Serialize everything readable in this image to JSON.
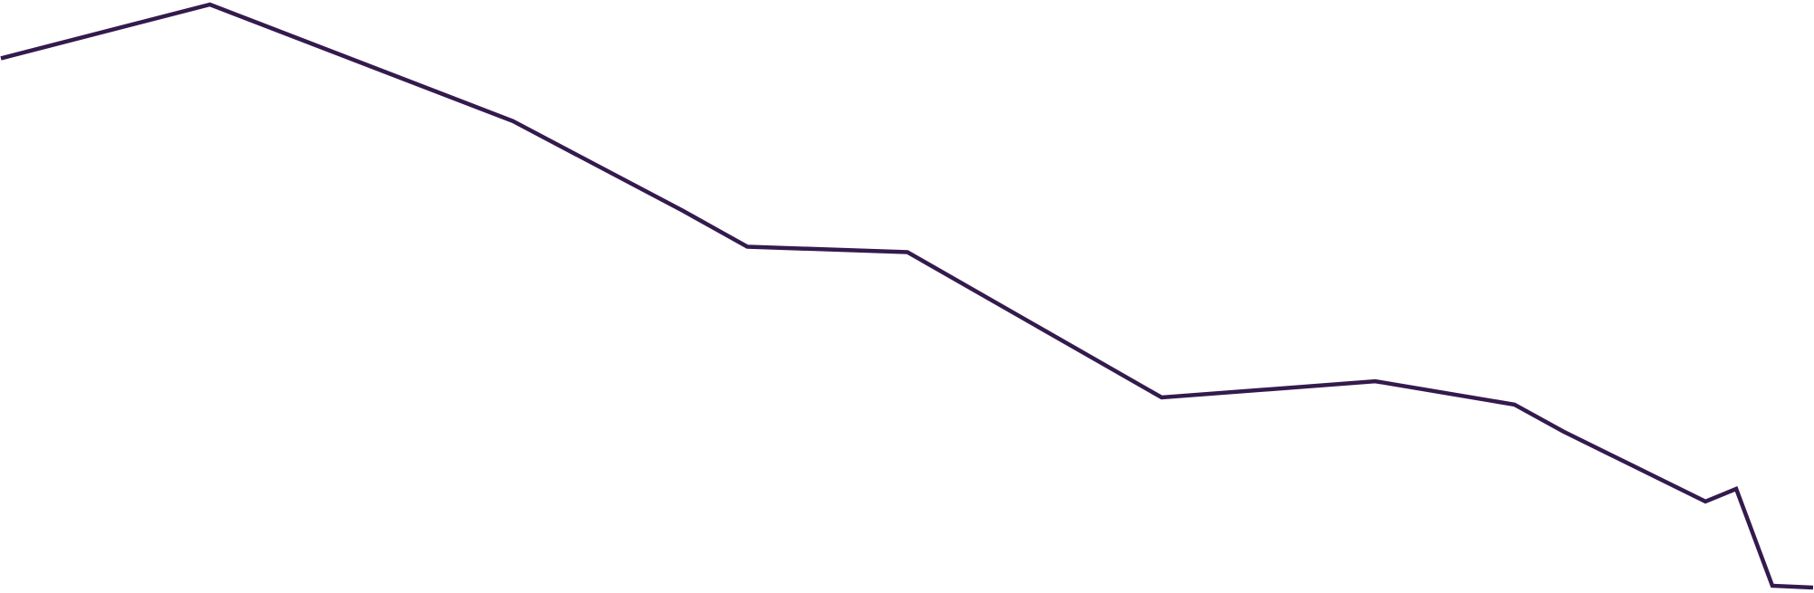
{
  "chart_data": {
    "type": "line",
    "x": [
      0,
      231,
      566,
      754,
      825,
      1002,
      1283,
      1519,
      1673,
      1727,
      1884,
      1918,
      1958,
      2003
    ],
    "series": [
      {
        "values": [
          12.0,
          15.0,
          8.5,
          3.5,
          1.5,
          1.2,
          -6.9,
          -6.0,
          -7.3,
          -8.8,
          -12.7,
          -12.0,
          -17.4,
          -17.5
        ],
        "color": "#341a4d"
      }
    ],
    "title": "",
    "xlabel": "",
    "ylabel": "",
    "xlim": [
      0,
      2003
    ],
    "ylim": [
      -17.5,
      15.0
    ],
    "grid": false,
    "axes_visible": false,
    "legend": "none"
  }
}
